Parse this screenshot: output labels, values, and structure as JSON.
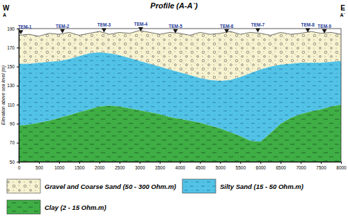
{
  "chart_data": {
    "type": "area",
    "title": "Profile (A-A`)",
    "left_labels": [
      "W",
      "A"
    ],
    "right_labels": [
      "E",
      "A`"
    ],
    "y_label": "Elevation above sea level (m)",
    "x": [
      0,
      250,
      500,
      750,
      1000,
      1250,
      1500,
      1750,
      2000,
      2250,
      2500,
      2750,
      3000,
      3250,
      3500,
      3750,
      4000,
      4250,
      4500,
      4750,
      5000,
      5250,
      5500,
      5750,
      6000,
      6250,
      6500,
      6750,
      7000,
      7250,
      7500,
      7750,
      8000
    ],
    "series": [
      {
        "name": "Gravel and Coarse Sand (50 - 300 Ohm.m)",
        "color": "#f7f2cf",
        "values": [
          183,
          184,
          182,
          185,
          184,
          186,
          183,
          185,
          187,
          184,
          186,
          185,
          188,
          186,
          184,
          186,
          185,
          183,
          186,
          184,
          185,
          187,
          184,
          186,
          185,
          183,
          186,
          184,
          185,
          187,
          185,
          186,
          184
        ]
      },
      {
        "name": "Silty Sand (15 - 50 Ohm.m)",
        "color": "#52c3e6",
        "values": [
          153,
          153,
          154,
          155,
          156,
          158,
          161,
          164,
          165,
          164,
          162,
          159,
          156,
          153,
          150,
          147,
          144,
          141,
          138,
          136,
          135,
          136,
          139,
          143,
          147,
          150,
          152,
          153,
          154,
          154,
          154,
          155,
          156
        ]
      },
      {
        "name": "Clay (2 - 15 Ohm.m)",
        "color": "#3fae45",
        "values": [
          88,
          89,
          91,
          93,
          96,
          99,
          102,
          105,
          108,
          109,
          108,
          106,
          104,
          102,
          100,
          97,
          95,
          93,
          91,
          88,
          85,
          81,
          77,
          72,
          71,
          80,
          90,
          96,
          100,
          103,
          105,
          108,
          110
        ]
      }
    ],
    "stations": [
      {
        "label": "TEM-1",
        "x": 50,
        "y": 184
      },
      {
        "label": "TEM-2",
        "x": 1084,
        "y": 185
      },
      {
        "label": "TEM-3",
        "x": 2116,
        "y": 186
      },
      {
        "label": "TEM-4",
        "x": 3028,
        "y": 187
      },
      {
        "label": "TEM-5",
        "x": 3888,
        "y": 185
      },
      {
        "label": "TEM-6",
        "x": 5161,
        "y": 185
      },
      {
        "label": "TEM-7",
        "x": 5935,
        "y": 186
      },
      {
        "label": "TEM-8",
        "x": 7174,
        "y": 186
      },
      {
        "label": "TEM-9",
        "x": 7587,
        "y": 185
      }
    ],
    "xlim": [
      0,
      8000
    ],
    "xticks": [
      0,
      500,
      1000,
      1500,
      2000,
      2500,
      3000,
      3500,
      4000,
      4500,
      5000,
      5500,
      6000,
      6500,
      7000,
      7500,
      8000
    ],
    "ylim": [
      50,
      190
    ],
    "yticks": [
      50,
      70,
      90,
      110,
      130,
      150,
      170,
      190
    ],
    "legend": "bottom"
  }
}
